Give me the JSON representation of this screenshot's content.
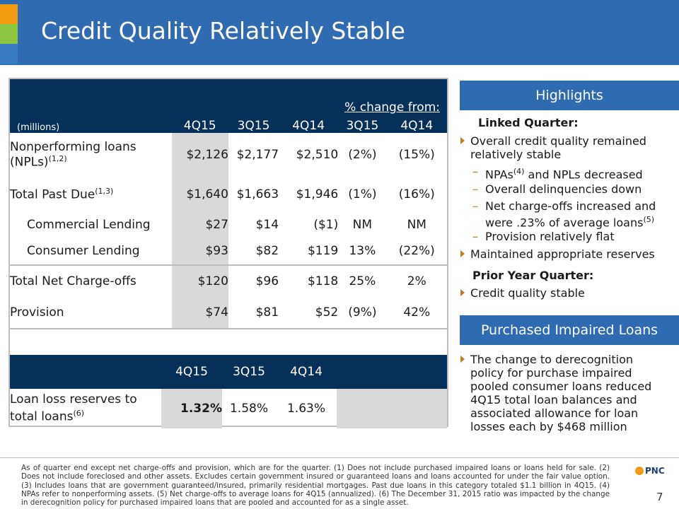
{
  "title": "Credit Quality Relatively Stable",
  "table1": {
    "unit": "(millions)",
    "pct_change_label": "% change from:",
    "columns": [
      "4Q15",
      "3Q15",
      "4Q14",
      "3Q15",
      "4Q14"
    ],
    "rows": [
      {
        "label": "Nonperforming loans (NPLs)",
        "sup": "(1,2)",
        "values": [
          "$2,126",
          "$2,177",
          "$2,510",
          "(2%)",
          "(15%)"
        ]
      },
      {
        "label": "Total Past Due",
        "sup": "(1,3)",
        "values": [
          "$1,640",
          "$1,663",
          "$1,946",
          "(1%)",
          "(16%)"
        ]
      },
      {
        "label": "Commercial Lending",
        "sup": "",
        "values": [
          "$27",
          "$14",
          "($1)",
          "NM",
          "NM"
        ]
      },
      {
        "label": "Consumer Lending",
        "sup": "",
        "values": [
          "$93",
          "$82",
          "$119",
          "13%",
          "(22%)"
        ]
      },
      {
        "label": "Total Net Charge-offs",
        "sup": "",
        "values": [
          "$120",
          "$96",
          "$118",
          "25%",
          "2%"
        ]
      },
      {
        "label": "Provision",
        "sup": "",
        "values": [
          "$74",
          "$81",
          "$52",
          "(9%)",
          "42%"
        ]
      }
    ]
  },
  "table2": {
    "columns": [
      "4Q15",
      "3Q15",
      "4Q14"
    ],
    "row": {
      "label": "Loan loss reserves to total loans",
      "sup": "(6)",
      "values": [
        "1.32%",
        "1.58%",
        "1.63%"
      ]
    }
  },
  "highlights": {
    "header": "Highlights",
    "linked_quarter": "Linked Quarter:",
    "bullet1": "Overall credit quality remained relatively stable",
    "dash1_pre": "NPAs",
    "dash1_sup": "(4)",
    "dash1_post": " and NPLs decreased",
    "dash2": "Overall delinquencies down",
    "dash3": "Net charge-offs increased and were .23% of average loans",
    "dash3_sup": "(5)",
    "dash4": "Provision relatively flat",
    "bullet2": "Maintained appropriate reserves",
    "prior_year": "Prior Year Quarter:",
    "bullet3": "Credit quality stable"
  },
  "purchased": {
    "header": "Purchased Impaired Loans",
    "bullet": "The change to derecognition policy for purchase impaired pooled consumer loans reduced 4Q15 total loan balances and associated allowance for loan losses each by $468 million"
  },
  "footnote": "As of quarter end except net charge-offs and provision, which are for the quarter. (1) Does not include purchased impaired loans or loans held for sale. (2) Does not include foreclosed and other assets. Excludes certain government insured or guaranteed loans and loans accounted for under the fair value option. (3) Includes loans that are government guaranteed/insured, primarily residential mortgages. Past due loans in this category totaled $1.1 billion in 4Q15. (4) NPAs refer to nonperforming assets. (5) Net charge-offs to average loans for 4Q15 (annualized). (6) The December 31, 2015 ratio was impacted by the change in derecognition policy for purchased impaired loans that are pooled and accounted for as a single asset.",
  "logo": "PNC",
  "page_number": "7",
  "colors": {
    "header_blue": "#2e6bb0",
    "navy": "#05305a",
    "shade": "#d9d9d9",
    "bullet": "#c77a1c"
  }
}
